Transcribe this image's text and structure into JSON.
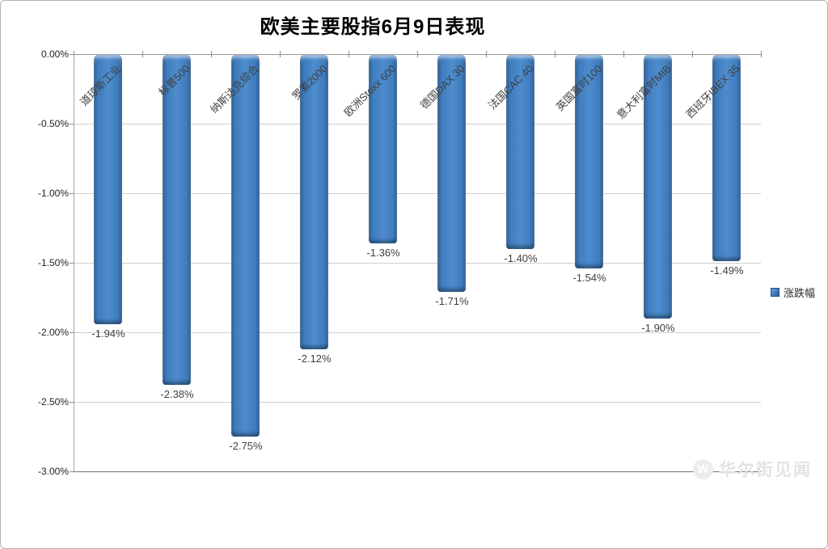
{
  "title": "欧美主要股指6月9日表现",
  "legend": {
    "label": "涨跌幅"
  },
  "watermark": {
    "letter": "W",
    "text": "华尔街见闻"
  },
  "chart_data": {
    "type": "bar",
    "title": "欧美主要股指6月9日表现",
    "series_name": "涨跌幅",
    "categories": [
      "道琼斯工业",
      "标普500",
      "纳斯达克综合",
      "罗素2000",
      "欧洲Stoxx 600",
      "德国DAX 30",
      "法国CAC 40",
      "英国富时100",
      "意大利富时MIB",
      "西班牙IBEX 35"
    ],
    "values": [
      -1.94,
      -2.38,
      -2.75,
      -2.12,
      -1.36,
      -1.71,
      -1.4,
      -1.54,
      -1.9,
      -1.49
    ],
    "data_labels": [
      "-1.94%",
      "-2.38%",
      "-2.75%",
      "-2.12%",
      "-1.36%",
      "-1.71%",
      "-1.40%",
      "-1.54%",
      "-1.90%",
      "-1.49%"
    ],
    "xlabel": "",
    "ylabel": "",
    "ylim": [
      -3.0,
      0.0
    ],
    "y_ticks": [
      0,
      -0.5,
      -1.0,
      -1.5,
      -2.0,
      -2.5,
      -3.0
    ],
    "y_tick_labels": [
      "0.00%",
      "-0.50%",
      "-1.00%",
      "-1.50%",
      "-2.00%",
      "-2.50%",
      "-3.00%"
    ],
    "grid": true,
    "legend_position": "right",
    "bar_color": "#3f7cbd"
  }
}
